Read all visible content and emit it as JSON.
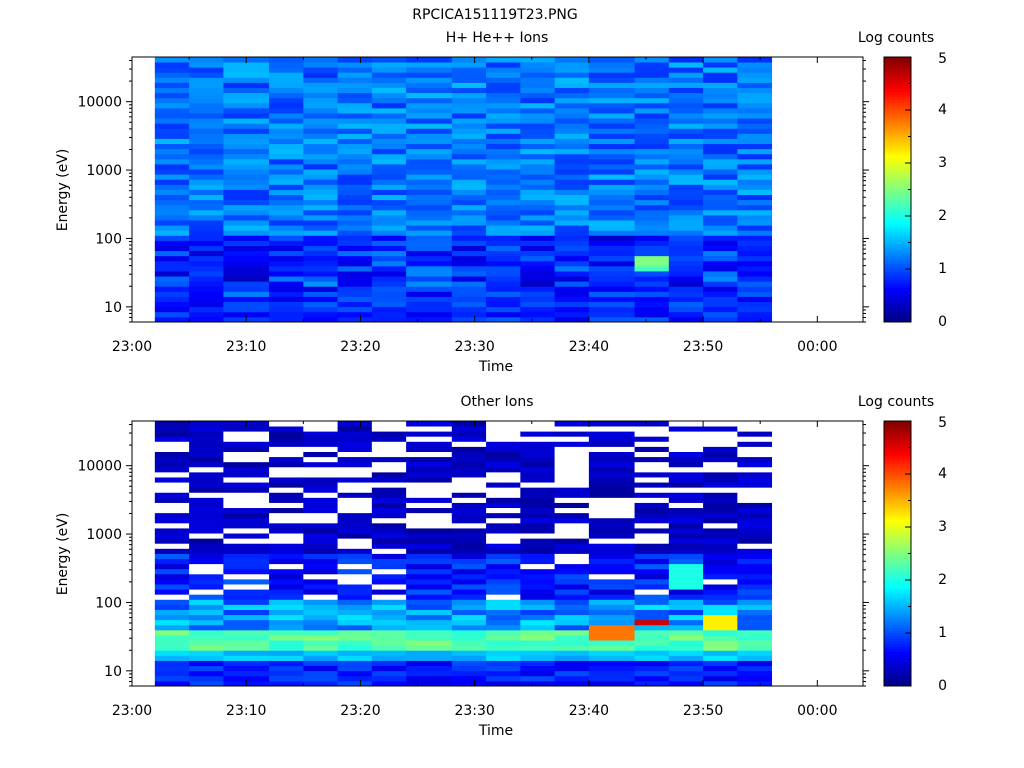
{
  "figure_title": "RPCICA151119T23.PNG",
  "chart_data": [
    {
      "type": "heatmap",
      "title": "H+ He++ Ions",
      "xlabel": "Time",
      "ylabel": "Energy (eV)",
      "y_scale": "log",
      "ylim": [
        6,
        45000
      ],
      "xlim": [
        "23:00",
        "00:04"
      ],
      "x_ticks": [
        "23:00",
        "23:10",
        "23:20",
        "23:30",
        "23:40",
        "23:50",
        "00:00"
      ],
      "y_ticks": [
        "10",
        "100",
        "1000",
        "10000"
      ],
      "colorbar": {
        "label": "Log counts",
        "range": [
          0,
          5
        ],
        "ticks": [
          "0",
          "1",
          "2",
          "3",
          "4",
          "5"
        ]
      },
      "time_bins": [
        "23:02",
        "23:05",
        "23:08",
        "23:12",
        "23:15",
        "23:18",
        "23:21",
        "23:24",
        "23:28",
        "23:31",
        "23:34",
        "23:37",
        "23:40",
        "23:44",
        "23:47",
        "23:50",
        "23:53"
      ],
      "data_end": "23:56",
      "energy_bins": {
        "min": 6,
        "max": 45000,
        "count": 52
      },
      "background_log_counts": 1.2,
      "highlights": [
        {
          "time_bin": 13,
          "energy_range": [
            38,
            55
          ],
          "log_counts": 2.5
        },
        {
          "time_bin": 13,
          "energy_range": [
            32,
            38
          ],
          "log_counts": 2.2
        }
      ]
    },
    {
      "type": "heatmap",
      "title": "Other Ions",
      "xlabel": "Time",
      "ylabel": "Energy (eV)",
      "y_scale": "log",
      "ylim": [
        6,
        45000
      ],
      "xlim": [
        "23:00",
        "00:04"
      ],
      "x_ticks": [
        "23:00",
        "23:10",
        "23:20",
        "23:30",
        "23:40",
        "23:50",
        "00:00"
      ],
      "y_ticks": [
        "10",
        "100",
        "1000",
        "10000"
      ],
      "colorbar": {
        "label": "Log counts",
        "range": [
          0,
          5
        ],
        "ticks": [
          "0",
          "1",
          "2",
          "3",
          "4",
          "5"
        ]
      },
      "time_bins": [
        "23:02",
        "23:05",
        "23:08",
        "23:12",
        "23:15",
        "23:18",
        "23:21",
        "23:24",
        "23:28",
        "23:31",
        "23:34",
        "23:37",
        "23:40",
        "23:44",
        "23:47",
        "23:50",
        "23:53"
      ],
      "data_end": "23:56",
      "energy_bins": {
        "min": 6,
        "max": 45000,
        "count": 52
      },
      "peak_band": {
        "energy_range": [
          22,
          40
        ],
        "log_counts": 2.3
      },
      "highlights": [
        {
          "time_bin": 13,
          "energy_range": [
            45,
            58
          ],
          "log_counts": 4.6
        },
        {
          "time_bin": 12,
          "energy_range": [
            30,
            45
          ],
          "log_counts": 3.8
        },
        {
          "time_bin": 15,
          "energy_range": [
            40,
            70
          ],
          "log_counts": 3.2
        },
        {
          "time_bin": 14,
          "energy_range": [
            150,
            400
          ],
          "log_counts": 2.0
        }
      ]
    }
  ]
}
